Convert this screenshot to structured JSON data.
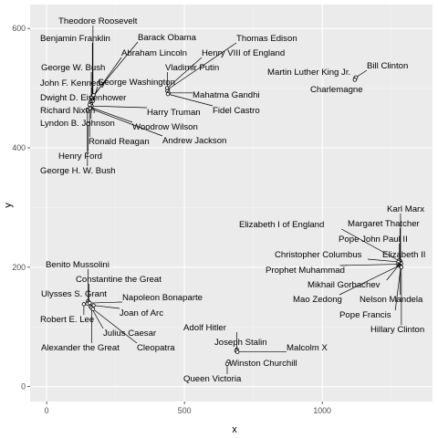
{
  "chart_data": {
    "type": "scatter",
    "title": "",
    "xlabel": "x",
    "ylabel": "y",
    "xlim": [
      -60,
      1400
    ],
    "ylim": [
      -25,
      640
    ],
    "x_ticks": [
      0,
      500,
      1000
    ],
    "y_ticks": [
      0,
      200,
      400,
      600
    ],
    "grid": true,
    "legend": "none",
    "points": [
      {
        "name": "Theodore Roosevelt",
        "x": 168,
        "y": 483
      },
      {
        "name": "Benjamin Franklin",
        "x": 166,
        "y": 486
      },
      {
        "name": "Barack Obama",
        "x": 170,
        "y": 488
      },
      {
        "name": "Abraham Lincoln",
        "x": 164,
        "y": 482
      },
      {
        "name": "George W. Bush",
        "x": 162,
        "y": 484
      },
      {
        "name": "John F. Kennedy",
        "x": 165,
        "y": 480
      },
      {
        "name": "George Washington",
        "x": 167,
        "y": 478
      },
      {
        "name": "Dwight D. Eisenhower",
        "x": 160,
        "y": 477
      },
      {
        "name": "Richard Nixon",
        "x": 158,
        "y": 475
      },
      {
        "name": "Lyndon B. Johnson",
        "x": 161,
        "y": 473
      },
      {
        "name": "Harry Truman",
        "x": 163,
        "y": 470
      },
      {
        "name": "Woodrow Wilson",
        "x": 159,
        "y": 468
      },
      {
        "name": "Ronald Reagan",
        "x": 156,
        "y": 472
      },
      {
        "name": "Andrew Jackson",
        "x": 157,
        "y": 466
      },
      {
        "name": "Henry Ford",
        "x": 150,
        "y": 440
      },
      {
        "name": "George H. W. Bush",
        "x": 148,
        "y": 464
      },
      {
        "name": "Thomas Edison",
        "x": 440,
        "y": 498
      },
      {
        "name": "Henry VIII of England",
        "x": 437,
        "y": 500
      },
      {
        "name": "Vladimir Putin",
        "x": 438,
        "y": 495
      },
      {
        "name": "Mahatma Gandhi",
        "x": 442,
        "y": 492
      },
      {
        "name": "Fidel Castro",
        "x": 440,
        "y": 490
      },
      {
        "name": "Martin Luther King Jr.",
        "x": 1120,
        "y": 517
      },
      {
        "name": "Bill Clinton",
        "x": 1122,
        "y": 518
      },
      {
        "name": "Charlemagne",
        "x": 1118,
        "y": 514
      },
      {
        "name": "Karl Marx",
        "x": 1284,
        "y": 210
      },
      {
        "name": "Margaret Thatcher",
        "x": 1282,
        "y": 208
      },
      {
        "name": "Elizabeth I of England",
        "x": 1278,
        "y": 211
      },
      {
        "name": "Pope John Paul II",
        "x": 1280,
        "y": 207
      },
      {
        "name": "Elizabeth II",
        "x": 1286,
        "y": 206
      },
      {
        "name": "Christopher Columbus",
        "x": 1276,
        "y": 209
      },
      {
        "name": "Prophet Muhammad",
        "x": 1274,
        "y": 205
      },
      {
        "name": "Mikhail Gorbachev",
        "x": 1279,
        "y": 204
      },
      {
        "name": "Mao Zedong",
        "x": 1281,
        "y": 203
      },
      {
        "name": "Nelson Mandela",
        "x": 1283,
        "y": 202
      },
      {
        "name": "Pope Francis",
        "x": 1285,
        "y": 201
      },
      {
        "name": "Hillary Clinton",
        "x": 1287,
        "y": 200
      },
      {
        "name": "Benito Mussolini",
        "x": 150,
        "y": 143
      },
      {
        "name": "Constantine the Great",
        "x": 153,
        "y": 141
      },
      {
        "name": "Ulysses S. Grant",
        "x": 148,
        "y": 139
      },
      {
        "name": "Napoleon Bonaparte",
        "x": 156,
        "y": 140
      },
      {
        "name": "Robert E. Lee",
        "x": 135,
        "y": 138
      },
      {
        "name": "Joan of Arc",
        "x": 170,
        "y": 136
      },
      {
        "name": "Julius Caesar",
        "x": 160,
        "y": 134
      },
      {
        "name": "Alexander the Great",
        "x": 163,
        "y": 132
      },
      {
        "name": "Cleopatra",
        "x": 168,
        "y": 130
      },
      {
        "name": "Adolf Hitler",
        "x": 690,
        "y": 62
      },
      {
        "name": "Joseph Stalin",
        "x": 688,
        "y": 60
      },
      {
        "name": "Malcolm X",
        "x": 692,
        "y": 58
      },
      {
        "name": "Winston Churchill",
        "x": 660,
        "y": 42
      },
      {
        "name": "Queen Victoria",
        "x": 655,
        "y": 38
      }
    ]
  }
}
